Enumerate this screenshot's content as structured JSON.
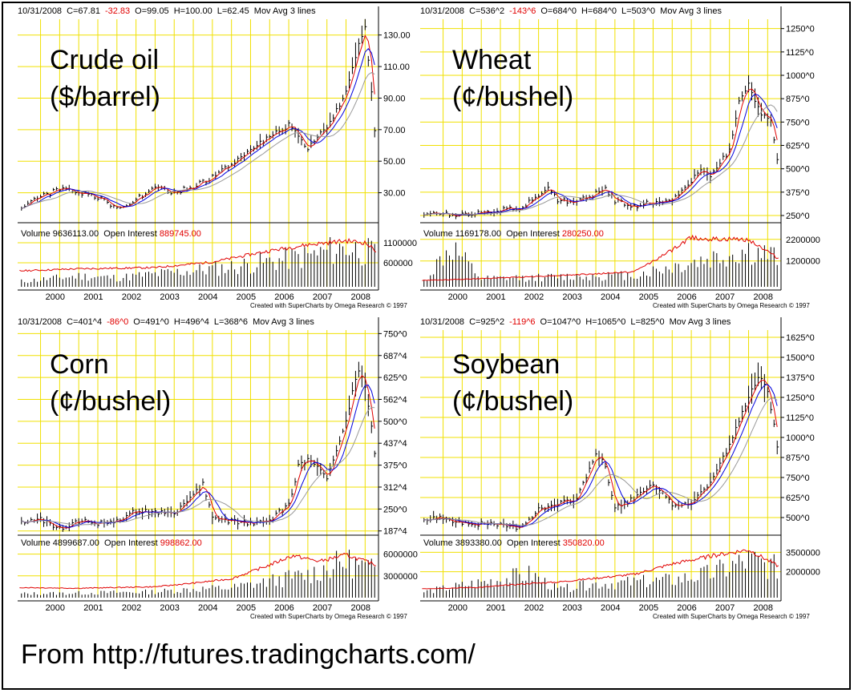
{
  "source_text": "From http://futures.tradingcharts.com/",
  "colors": {
    "grid": "#f0e000",
    "price": "#000000",
    "ma_red": "#e00000",
    "ma_blue": "#0000dd",
    "ma_gray": "#999999",
    "volume": "#000000",
    "open_interest": "#e00000"
  },
  "chart_data": [
    {
      "type": "line",
      "header": {
        "date": "10/31/2008",
        "close": "C=67.81",
        "change": "-32.83",
        "open": "O=99.05",
        "high": "H=100.00",
        "low": "L=62.45",
        "study": "Mov Avg 3 lines"
      },
      "title_line1": "Crude oil",
      "title_line2": "($/barrel)",
      "y_ticks": [
        "130.00",
        "110.00",
        "90.00",
        "70.00",
        "50.00",
        "30.00"
      ],
      "y_tick_values": [
        130,
        110,
        90,
        70,
        50,
        30
      ],
      "ylim": [
        12,
        140
      ],
      "x_ticks": [
        "2000",
        "2001",
        "2002",
        "2003",
        "2004",
        "2005",
        "2006",
        "2007",
        "2008"
      ],
      "xlim": [
        1999.4,
        2008.85
      ],
      "close": [
        [
          1999.5,
          21
        ],
        [
          2000.0,
          28
        ],
        [
          2000.5,
          32
        ],
        [
          2001.0,
          30
        ],
        [
          2001.5,
          27
        ],
        [
          2002.0,
          20
        ],
        [
          2002.5,
          26
        ],
        [
          2003.0,
          33
        ],
        [
          2003.5,
          30
        ],
        [
          2004.0,
          34
        ],
        [
          2004.5,
          40
        ],
        [
          2005.0,
          48
        ],
        [
          2005.5,
          58
        ],
        [
          2006.0,
          65
        ],
        [
          2006.5,
          73
        ],
        [
          2007.0,
          58
        ],
        [
          2007.5,
          72
        ],
        [
          2008.0,
          93
        ],
        [
          2008.35,
          125
        ],
        [
          2008.5,
          134
        ],
        [
          2008.65,
          100
        ],
        [
          2008.75,
          67.81
        ]
      ],
      "volume_label": "Volume",
      "volume_value": "9636113.00",
      "oi_label": "Open Interest",
      "oi_value": "889745.00",
      "vol_ticks": [
        "1100000",
        "600000"
      ],
      "vol_tick_values": [
        1100000,
        600000
      ],
      "vol_ylim": [
        0,
        1400000
      ],
      "open_interest": [
        [
          1999.5,
          400000
        ],
        [
          2001.0,
          450000
        ],
        [
          2003.0,
          480000
        ],
        [
          2004.5,
          620000
        ],
        [
          2006.0,
          900000
        ],
        [
          2007.0,
          1050000
        ],
        [
          2008.0,
          1150000
        ],
        [
          2008.5,
          1100000
        ],
        [
          2008.8,
          889745
        ]
      ],
      "volume": [
        [
          1999.5,
          150000
        ],
        [
          2001.0,
          300000
        ],
        [
          2002.0,
          250000
        ],
        [
          2003.0,
          350000
        ],
        [
          2004.0,
          450000
        ],
        [
          2005.0,
          550000
        ],
        [
          2006.0,
          700000
        ],
        [
          2007.0,
          850000
        ],
        [
          2008.0,
          1100000
        ],
        [
          2008.8,
          900000
        ]
      ],
      "credit": "Created with SuperCharts by Omega Research © 1997"
    },
    {
      "type": "line",
      "header": {
        "date": "10/31/2008",
        "close": "C=536^2",
        "change": "-143^6",
        "open": "O=684^0",
        "high": "H=684^0",
        "low": "L=503^0",
        "study": "Mov Avg 3 lines"
      },
      "title_line1": "Wheat",
      "title_line2": "(¢/bushel)",
      "y_ticks": [
        "1250^0",
        "1125^0",
        "1000^0",
        "875^0",
        "750^0",
        "625^0",
        "500^0",
        "375^0",
        "250^0"
      ],
      "y_tick_values": [
        1250,
        1125,
        1000,
        875,
        750,
        625,
        500,
        375,
        250
      ],
      "ylim": [
        220,
        1300
      ],
      "x_ticks": [
        "2000",
        "2001",
        "2002",
        "2003",
        "2004",
        "2005",
        "2006",
        "2007",
        "2008"
      ],
      "xlim": [
        1999.4,
        2008.85
      ],
      "close": [
        [
          1999.5,
          265
        ],
        [
          2000.0,
          255
        ],
        [
          2000.5,
          260
        ],
        [
          2001.0,
          270
        ],
        [
          2001.5,
          280
        ],
        [
          2002.0,
          285
        ],
        [
          2002.5,
          360
        ],
        [
          2002.75,
          410
        ],
        [
          2003.0,
          330
        ],
        [
          2003.5,
          320
        ],
        [
          2004.0,
          370
        ],
        [
          2004.25,
          390
        ],
        [
          2004.5,
          330
        ],
        [
          2005.0,
          300
        ],
        [
          2005.5,
          320
        ],
        [
          2006.0,
          330
        ],
        [
          2006.5,
          430
        ],
        [
          2006.75,
          500
        ],
        [
          2007.0,
          470
        ],
        [
          2007.5,
          600
        ],
        [
          2007.75,
          850
        ],
        [
          2008.0,
          950
        ],
        [
          2008.3,
          800
        ],
        [
          2008.6,
          750
        ],
        [
          2008.75,
          536
        ]
      ],
      "volume_label": "Volume",
      "volume_value": "1169178.00",
      "oi_label": "Open Interest",
      "oi_value": "280250.00",
      "vol_ticks": [
        "2200000",
        "1200000"
      ],
      "vol_tick_values": [
        2200000,
        1200000
      ],
      "vol_ylim": [
        0,
        2600000
      ],
      "open_interest": [
        [
          1999.5,
          300000
        ],
        [
          2000.5,
          350000
        ],
        [
          2002.0,
          450000
        ],
        [
          2004.0,
          600000
        ],
        [
          2005.0,
          700000
        ],
        [
          2006.0,
          1700000
        ],
        [
          2006.5,
          2300000
        ],
        [
          2007.0,
          2200000
        ],
        [
          2008.0,
          2200000
        ],
        [
          2008.8,
          1300000
        ]
      ],
      "volume": [
        [
          1999.5,
          300000
        ],
        [
          2000.2,
          2000000
        ],
        [
          2001.0,
          400000
        ],
        [
          2003.0,
          500000
        ],
        [
          2005.0,
          600000
        ],
        [
          2006.5,
          1200000
        ],
        [
          2008.0,
          1800000
        ],
        [
          2008.8,
          1400000
        ]
      ],
      "credit": "Created with SuperCharts by Omega Research © 1997"
    },
    {
      "type": "line",
      "header": {
        "date": "10/31/2008",
        "close": "C=401^4",
        "change": "-86^0",
        "open": "O=491^0",
        "high": "H=496^4",
        "low": "L=368^6",
        "study": "Mov Avg 3 lines"
      },
      "title_line1": "Corn",
      "title_line2": "(¢/bushel)",
      "y_ticks": [
        "750^0",
        "687^4",
        "625^0",
        "562^4",
        "500^0",
        "437^4",
        "375^0",
        "312^4",
        "250^0",
        "187^4"
      ],
      "y_tick_values": [
        750,
        687.5,
        625,
        562.5,
        500,
        437.5,
        375,
        312.5,
        250,
        187.5
      ],
      "ylim": [
        180,
        760
      ],
      "x_ticks": [
        "2000",
        "2001",
        "2002",
        "2003",
        "2004",
        "2005",
        "2006",
        "2007",
        "2008"
      ],
      "xlim": [
        1999.4,
        2008.85
      ],
      "close": [
        [
          1999.5,
          210
        ],
        [
          2000.0,
          220
        ],
        [
          2000.5,
          195
        ],
        [
          2001.0,
          215
        ],
        [
          2001.5,
          210
        ],
        [
          2002.0,
          215
        ],
        [
          2002.5,
          245
        ],
        [
          2003.0,
          240
        ],
        [
          2003.5,
          235
        ],
        [
          2004.0,
          290
        ],
        [
          2004.25,
          320
        ],
        [
          2004.5,
          230
        ],
        [
          2005.0,
          215
        ],
        [
          2005.5,
          210
        ],
        [
          2006.0,
          220
        ],
        [
          2006.5,
          260
        ],
        [
          2006.75,
          370
        ],
        [
          2007.0,
          390
        ],
        [
          2007.5,
          340
        ],
        [
          2008.0,
          500
        ],
        [
          2008.3,
          650
        ],
        [
          2008.5,
          600
        ],
        [
          2008.65,
          500
        ],
        [
          2008.75,
          401.5
        ]
      ],
      "volume_label": "Volume",
      "volume_value": "4899687.00",
      "oi_label": "Open Interest",
      "oi_value": "998862.00",
      "vol_ticks": [
        "6000000",
        "3000000"
      ],
      "vol_tick_values": [
        6000000,
        3000000
      ],
      "vol_ylim": [
        0,
        7500000
      ],
      "open_interest": [
        [
          1999.5,
          1400000
        ],
        [
          2001.0,
          1300000
        ],
        [
          2003.0,
          1500000
        ],
        [
          2004.0,
          2000000
        ],
        [
          2005.0,
          2600000
        ],
        [
          2006.0,
          4500000
        ],
        [
          2006.6,
          5800000
        ],
        [
          2007.3,
          5000000
        ],
        [
          2008.0,
          5900000
        ],
        [
          2008.8,
          4500000
        ]
      ],
      "volume": [
        [
          1999.5,
          600000
        ],
        [
          2001.0,
          700000
        ],
        [
          2003.0,
          900000
        ],
        [
          2004.0,
          1300000
        ],
        [
          2005.0,
          1500000
        ],
        [
          2006.0,
          2500000
        ],
        [
          2007.0,
          3500000
        ],
        [
          2008.0,
          5500000
        ],
        [
          2008.8,
          4000000
        ]
      ],
      "credit": "Created with SuperCharts by Omega Research © 1997"
    },
    {
      "type": "line",
      "header": {
        "date": "10/31/2008",
        "close": "C=925^2",
        "change": "-119^6",
        "open": "O=1047^0",
        "high": "H=1065^0",
        "low": "L=825^0",
        "study": "Mov Avg 3 lines"
      },
      "title_line1": "Soybean",
      "title_line2": "(¢/bushel)",
      "y_ticks": [
        "1625^0",
        "1500^0",
        "1375^0",
        "1250^0",
        "1125^0",
        "1000^0",
        "875^0",
        "750^0",
        "625^0",
        "500^0"
      ],
      "y_tick_values": [
        1625,
        1500,
        1375,
        1250,
        1125,
        1000,
        875,
        750,
        625,
        500
      ],
      "ylim": [
        400,
        1670
      ],
      "x_ticks": [
        "2000",
        "2001",
        "2002",
        "2003",
        "2004",
        "2005",
        "2006",
        "2007",
        "2008"
      ],
      "xlim": [
        1999.4,
        2008.85
      ],
      "close": [
        [
          1999.5,
          480
        ],
        [
          2000.0,
          500
        ],
        [
          2000.5,
          470
        ],
        [
          2001.0,
          460
        ],
        [
          2001.5,
          450
        ],
        [
          2002.0,
          440
        ],
        [
          2002.5,
          550
        ],
        [
          2003.0,
          580
        ],
        [
          2003.5,
          620
        ],
        [
          2004.0,
          900
        ],
        [
          2004.2,
          850
        ],
        [
          2004.5,
          560
        ],
        [
          2005.0,
          620
        ],
        [
          2005.5,
          700
        ],
        [
          2006.0,
          580
        ],
        [
          2006.5,
          590
        ],
        [
          2007.0,
          720
        ],
        [
          2007.5,
          950
        ],
        [
          2008.0,
          1250
        ],
        [
          2008.3,
          1400
        ],
        [
          2008.5,
          1300
        ],
        [
          2008.65,
          1100
        ],
        [
          2008.75,
          925.2
        ]
      ],
      "volume_label": "Volume",
      "volume_value": "3893380.00",
      "oi_label": "Open Interest",
      "oi_value": "350820.00",
      "vol_ticks": [
        "3500000",
        "2000000"
      ],
      "vol_tick_values": [
        3500000,
        2000000
      ],
      "vol_ylim": [
        0,
        4200000
      ],
      "open_interest": [
        [
          1999.5,
          700000
        ],
        [
          2001.0,
          800000
        ],
        [
          2002.3,
          1100000
        ],
        [
          2003.0,
          1200000
        ],
        [
          2004.0,
          1500000
        ],
        [
          2005.0,
          1800000
        ],
        [
          2006.0,
          2600000
        ],
        [
          2007.0,
          3200000
        ],
        [
          2008.0,
          3700000
        ],
        [
          2008.8,
          2400000
        ]
      ],
      "volume": [
        [
          1999.5,
          500000
        ],
        [
          2002.3,
          2000000
        ],
        [
          2003.0,
          700000
        ],
        [
          2004.0,
          1200000
        ],
        [
          2005.0,
          1300000
        ],
        [
          2006.0,
          1500000
        ],
        [
          2007.0,
          2000000
        ],
        [
          2008.0,
          3200000
        ],
        [
          2008.8,
          2500000
        ]
      ],
      "credit": "Created with SuperCharts by Omega Research © 1997"
    }
  ]
}
